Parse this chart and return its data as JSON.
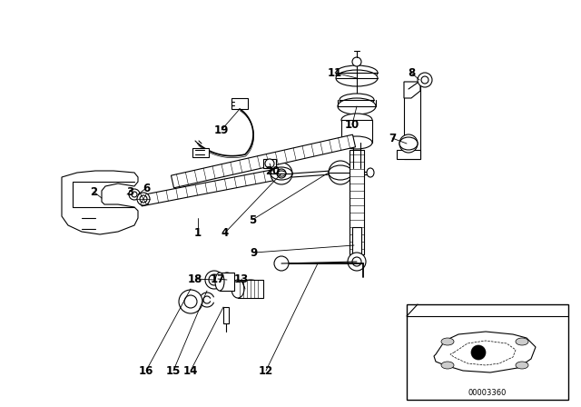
{
  "bg_color": "#ffffff",
  "fig_width": 6.4,
  "fig_height": 4.48,
  "dpi": 100,
  "lc": "#000000",
  "lw": 0.8,
  "fs": 8.5,
  "labels": [
    [
      218,
      256,
      "1"
    ],
    [
      103,
      211,
      "2"
    ],
    [
      143,
      211,
      "3"
    ],
    [
      248,
      256,
      "4"
    ],
    [
      278,
      242,
      "5"
    ],
    [
      161,
      207,
      "6"
    ],
    [
      432,
      152,
      "7"
    ],
    [
      453,
      80,
      "8"
    ],
    [
      280,
      278,
      "9"
    ],
    [
      388,
      137,
      "10"
    ],
    [
      369,
      80,
      "11"
    ],
    [
      293,
      408,
      "12"
    ],
    [
      266,
      307,
      "13"
    ],
    [
      210,
      408,
      "14"
    ],
    [
      191,
      408,
      "15"
    ],
    [
      161,
      408,
      "16"
    ],
    [
      240,
      307,
      "17"
    ],
    [
      215,
      307,
      "18"
    ],
    [
      244,
      143,
      "19"
    ],
    [
      300,
      188,
      "20"
    ]
  ],
  "car_code": "00003360"
}
